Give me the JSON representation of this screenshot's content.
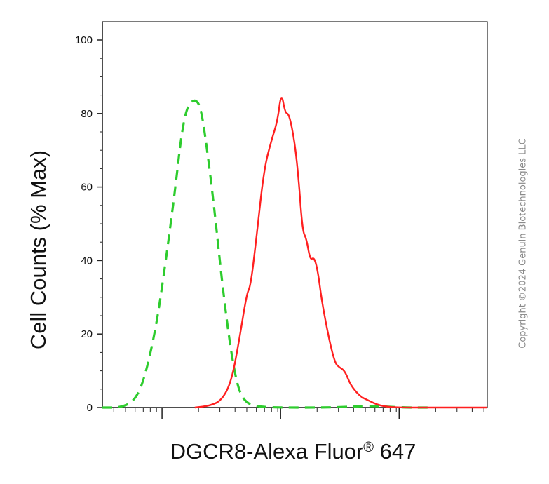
{
  "chart_data": {
    "type": "line",
    "xlabel": "DGCR8-Alexa Fluor",
    "xlabel_superscript": "®",
    "xlabel_suffix": " 647",
    "ylabel": "Cell Counts (% Max)",
    "x_scale": "log",
    "ylim": [
      0,
      100
    ],
    "y_ticks": [
      0,
      20,
      40,
      60,
      80,
      100
    ],
    "grid": false,
    "series": [
      {
        "name": "",
        "color": "#2ecc2e",
        "dash": true,
        "points": [
          [
            0.0,
            0
          ],
          [
            0.05,
            0
          ],
          [
            0.085,
            2
          ],
          [
            0.11,
            8
          ],
          [
            0.14,
            22
          ],
          [
            0.165,
            40
          ],
          [
            0.19,
            60
          ],
          [
            0.205,
            74
          ],
          [
            0.22,
            82
          ],
          [
            0.24,
            84
          ],
          [
            0.255,
            82
          ],
          [
            0.27,
            72
          ],
          [
            0.29,
            55
          ],
          [
            0.31,
            35
          ],
          [
            0.33,
            18
          ],
          [
            0.35,
            6
          ],
          [
            0.37,
            1.5
          ],
          [
            0.4,
            0.3
          ],
          [
            0.45,
            0
          ],
          [
            0.6,
            0
          ],
          [
            0.7,
            0.5
          ],
          [
            0.78,
            0
          ],
          [
            0.85,
            0
          ]
        ]
      },
      {
        "name": "",
        "color": "#ff2020",
        "dash": false,
        "points": [
          [
            0.24,
            0
          ],
          [
            0.28,
            0.5
          ],
          [
            0.31,
            2
          ],
          [
            0.335,
            7
          ],
          [
            0.355,
            18
          ],
          [
            0.375,
            31
          ],
          [
            0.385,
            33
          ],
          [
            0.4,
            46
          ],
          [
            0.42,
            65
          ],
          [
            0.44,
            73
          ],
          [
            0.455,
            78
          ],
          [
            0.465,
            86
          ],
          [
            0.475,
            80
          ],
          [
            0.485,
            80
          ],
          [
            0.5,
            72
          ],
          [
            0.51,
            62
          ],
          [
            0.52,
            48
          ],
          [
            0.53,
            46
          ],
          [
            0.54,
            40
          ],
          [
            0.55,
            41
          ],
          [
            0.56,
            37
          ],
          [
            0.57,
            29
          ],
          [
            0.59,
            18
          ],
          [
            0.605,
            12
          ],
          [
            0.615,
            11
          ],
          [
            0.63,
            10
          ],
          [
            0.645,
            6
          ],
          [
            0.67,
            3
          ],
          [
            0.69,
            2
          ],
          [
            0.72,
            0.5
          ],
          [
            0.76,
            0
          ],
          [
            0.85,
            0
          ],
          [
            1.0,
            0
          ]
        ]
      }
    ]
  },
  "watermark": "Copyright ©2024 Genuin Biotechnologies LLC"
}
